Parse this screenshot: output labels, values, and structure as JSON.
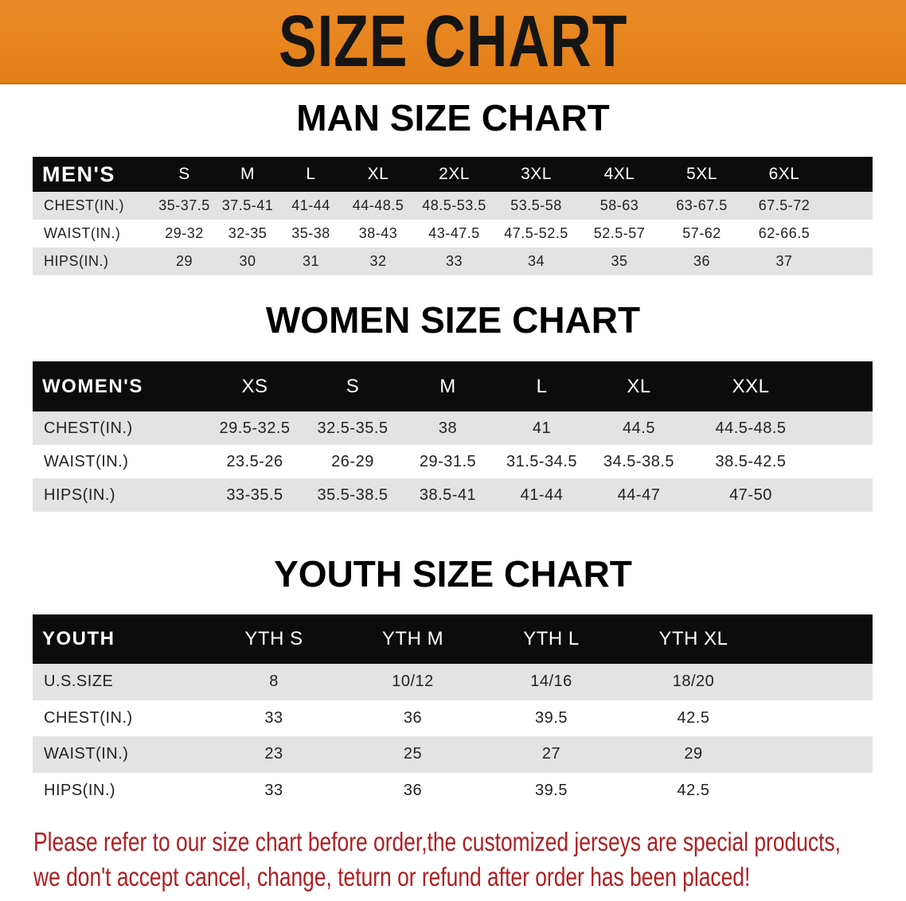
{
  "banner": {
    "title": "SIZE CHART",
    "color": "#e8841e"
  },
  "men": {
    "title": "MAN SIZE CHART",
    "header": [
      "MEN'S",
      "S",
      "M",
      "L",
      "XL",
      "2XL",
      "3XL",
      "4XL",
      "5XL",
      "6XL"
    ],
    "rows": [
      [
        "CHEST(IN.)",
        "35-37.5",
        "37.5-41",
        "41-44",
        "44-48.5",
        "48.5-53.5",
        "53.5-58",
        "58-63",
        "63-67.5",
        "67.5-72"
      ],
      [
        "WAIST(IN.)",
        "29-32",
        "32-35",
        "35-38",
        "38-43",
        "43-47.5",
        "47.5-52.5",
        "52.5-57",
        "57-62",
        "62-66.5"
      ],
      [
        "HIPS(IN.)",
        "29",
        "30",
        "31",
        "32",
        "33",
        "34",
        "35",
        "36",
        "37"
      ]
    ]
  },
  "women": {
    "title": "WOMEN SIZE CHART",
    "header": [
      "WOMEN'S",
      "XS",
      "S",
      "M",
      "L",
      "XL",
      "XXL"
    ],
    "rows": [
      [
        "CHEST(IN.)",
        "29.5-32.5",
        "32.5-35.5",
        "38",
        "41",
        "44.5",
        "44.5-48.5"
      ],
      [
        "WAIST(IN.)",
        "23.5-26",
        "26-29",
        "29-31.5",
        "31.5-34.5",
        "34.5-38.5",
        "38.5-42.5"
      ],
      [
        "HIPS(IN.)",
        "33-35.5",
        "35.5-38.5",
        "38.5-41",
        "41-44",
        "44-47",
        "47-50"
      ]
    ]
  },
  "youth": {
    "title": "YOUTH SIZE CHART",
    "header": [
      "YOUTH",
      "YTH S",
      "YTH M",
      "YTH L",
      "YTH XL"
    ],
    "rows": [
      [
        "U.S.SIZE",
        "8",
        "10/12",
        "14/16",
        "18/20"
      ],
      [
        "CHEST(IN.)",
        "33",
        "36",
        "39.5",
        "42.5"
      ],
      [
        "WAIST(IN.)",
        "23",
        "25",
        "27",
        "29"
      ],
      [
        "HIPS(IN.)",
        "33",
        "36",
        "39.5",
        "42.5"
      ]
    ]
  },
  "notice": {
    "line1": "Please refer to our size chart before order,the customized jerseys are special products,",
    "line2": "we don't accept cancel, change, teturn or refund after order has been placed!",
    "color": "#b01e22"
  }
}
